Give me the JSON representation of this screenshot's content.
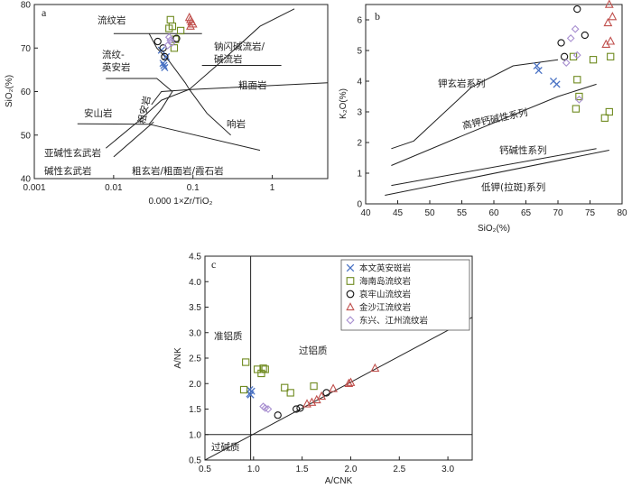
{
  "colors": {
    "benwen": "#4a72c4",
    "hainan": "#6f8a1f",
    "aolao": "#111111",
    "jinsha": "#c0504d",
    "dongxing": "#a88fd0"
  },
  "chart_data": [
    {
      "id": "a",
      "type": "scatter",
      "panel_label": "a",
      "xlabel": "0.000 1×Zr/TiO₂",
      "ylabel": "SiO₂(%)",
      "xscale": "log",
      "xlim": [
        0.001,
        5
      ],
      "ylim": [
        40,
        80
      ],
      "x_ticks": [
        0.001,
        0.01,
        0.1,
        1
      ],
      "x_tick_labels": [
        "0.001",
        "0.01",
        "0.1",
        "1"
      ],
      "y_ticks": [
        40,
        50,
        60,
        70,
        80
      ],
      "y_tick_labels": [
        "40",
        "50",
        "60",
        "70",
        "80"
      ],
      "field_lines": [
        [
          [
            0.028,
            73.3
          ],
          [
            0.035,
            70
          ],
          [
            0.05,
            67
          ],
          [
            0.08,
            62
          ],
          [
            0.09,
            60.5
          ],
          [
            0.15,
            55
          ],
          [
            0.3,
            50
          ]
        ],
        [
          [
            0.008,
            47
          ],
          [
            0.02,
            53
          ],
          [
            0.04,
            58
          ],
          [
            0.09,
            60.5
          ],
          [
            0.2,
            66
          ],
          [
            0.7,
            75
          ],
          [
            1.9,
            79
          ]
        ],
        [
          [
            0.03,
            57
          ],
          [
            0.04,
            60
          ],
          [
            0.1,
            60.5
          ],
          [
            5,
            62
          ]
        ],
        [
          [
            0.008,
            63
          ],
          [
            0.035,
            63
          ],
          [
            0.055,
            60
          ],
          [
            0.04,
            56
          ],
          [
            0.028,
            52.5
          ]
        ],
        [
          [
            0.0035,
            52.6
          ],
          [
            0.028,
            52.5
          ],
          [
            0.7,
            46.5
          ]
        ],
        [
          [
            0.01,
            45
          ],
          [
            0.032,
            53
          ]
        ],
        [
          [
            0.01,
            73.3
          ],
          [
            0.13,
            73.3
          ]
        ],
        [
          [
            0.13,
            66
          ],
          [
            1.3,
            66
          ]
        ]
      ],
      "field_names": [
        "流纹岩",
        "流纹-",
        "英安岩",
        "钠闪碱流岩/",
        "碱流岩",
        "粗面岩",
        "安山岩",
        "粗安岩",
        "响岩",
        "亚碱性玄武岩",
        "碱性玄武岩",
        "粗玄岩/粗面岩/霞石岩"
      ],
      "series": [
        {
          "name": "本文英安斑岩",
          "marker": "x",
          "x": [
            0.04,
            0.042,
            0.044,
            0.046,
            0.043
          ],
          "y": [
            69.5,
            66.5,
            65.5,
            68,
            66
          ]
        },
        {
          "name": "海南岛流纹岩",
          "marker": "square",
          "x": [
            0.052,
            0.055,
            0.05,
            0.07,
            0.06,
            0.058
          ],
          "y": [
            76.5,
            75,
            74.5,
            74,
            72,
            70
          ]
        },
        {
          "name": "哀牢山流纹岩",
          "marker": "circle",
          "x": [
            0.036,
            0.042,
            0.044,
            0.062
          ],
          "y": [
            71.5,
            70,
            68,
            72.2
          ]
        },
        {
          "name": "金沙江流纹岩",
          "marker": "triangle",
          "x": [
            0.09,
            0.093,
            0.096,
            0.1,
            0.093
          ],
          "y": [
            77,
            76.5,
            76,
            75.5,
            75
          ]
        },
        {
          "name": "东兴、江州流纹岩",
          "marker": "diamond",
          "x": [
            0.05,
            0.052,
            0.054,
            0.048
          ],
          "y": [
            72.5,
            71.8,
            71.2,
            70.6
          ]
        }
      ]
    },
    {
      "id": "b",
      "type": "scatter",
      "panel_label": "b",
      "xlabel": "SiO₂(%)",
      "ylabel": "K₂O(%)",
      "xlim": [
        40,
        80
      ],
      "ylim": [
        0,
        6.5
      ],
      "x_ticks": [
        40,
        45,
        50,
        55,
        60,
        65,
        70,
        75,
        80
      ],
      "y_ticks": [
        0,
        1,
        2,
        3,
        4,
        5,
        6
      ],
      "field_lines": [
        [
          [
            44,
            1.8
          ],
          [
            47.5,
            2.05
          ],
          [
            56.5,
            3.8
          ],
          [
            63,
            4.5
          ],
          [
            70,
            4.7
          ]
        ],
        [
          [
            44,
            1.25
          ],
          [
            56,
            2.3
          ],
          [
            70,
            3.5
          ],
          [
            76,
            3.9
          ]
        ],
        [
          [
            44,
            0.6
          ],
          [
            76,
            1.8
          ]
        ],
        [
          [
            43,
            0.28
          ],
          [
            78,
            1.75
          ]
        ]
      ],
      "field_names": [
        "钾玄岩系列",
        "高钾钙碱性系列",
        "钙碱性系列",
        "低钾(拉斑)系列"
      ],
      "series": [
        {
          "name": "本文英安斑岩",
          "marker": "x",
          "x": [
            66.7,
            67,
            69.3,
            69.8
          ],
          "y": [
            4.5,
            4.35,
            4.0,
            3.9
          ]
        },
        {
          "name": "海南岛流纹岩",
          "marker": "square",
          "x": [
            72.4,
            73,
            73.3,
            72.8,
            75.5,
            77.3,
            78,
            78.2
          ],
          "y": [
            4.8,
            4.05,
            3.5,
            3.1,
            4.7,
            2.8,
            3.0,
            4.8
          ]
        },
        {
          "name": "哀牢山流纹岩",
          "marker": "circle",
          "x": [
            70.5,
            71,
            73,
            74.2
          ],
          "y": [
            5.25,
            4.8,
            6.35,
            5.5
          ]
        },
        {
          "name": "金沙江流纹岩",
          "marker": "triangle",
          "x": [
            78,
            78.5,
            77.8,
            78.2,
            77.5
          ],
          "y": [
            6.5,
            6.1,
            5.9,
            5.3,
            5.2
          ]
        },
        {
          "name": "东兴、江州流纹岩",
          "marker": "diamond",
          "x": [
            71.3,
            72,
            72.7,
            73.3,
            73
          ],
          "y": [
            4.6,
            5.4,
            5.7,
            3.4,
            4.85
          ]
        }
      ]
    },
    {
      "id": "c",
      "type": "scatter",
      "panel_label": "c",
      "xlabel": "A/CNK",
      "ylabel": "A/NK",
      "xlim": [
        0.5,
        3.25
      ],
      "ylim": [
        0.5,
        4.5
      ],
      "x_ticks": [
        0.5,
        1.0,
        1.5,
        2.0,
        2.5,
        3.0
      ],
      "x_tick_labels": [
        "0.5",
        "1.0",
        "1.5",
        "2.0",
        "2.5",
        "3.0"
      ],
      "y_ticks": [
        0.5,
        1.0,
        1.5,
        2.0,
        2.5,
        3.0,
        3.5,
        4.0,
        4.5
      ],
      "y_tick_labels": [
        "0.5",
        "1.0",
        "1.5",
        "2.0",
        "2.5",
        "3.0",
        "3.5",
        "4.0",
        "4.5"
      ],
      "field_lines": [
        [
          [
            0.97,
            0.5
          ],
          [
            0.97,
            4.5
          ]
        ],
        [
          [
            0.5,
            1.0
          ],
          [
            3.25,
            1.0
          ]
        ],
        [
          [
            0.5,
            0.5
          ],
          [
            3.25,
            3.3
          ]
        ]
      ],
      "field_names": [
        "准铝质",
        "过铝质",
        "过碱质"
      ],
      "series": [
        {
          "name": "本文英安斑岩",
          "marker": "x",
          "x": [
            0.96,
            0.98,
            0.97,
            0.96
          ],
          "y": [
            1.8,
            1.85,
            1.78,
            1.88
          ]
        },
        {
          "name": "海南岛流纹岩",
          "marker": "square",
          "x": [
            0.92,
            0.9,
            1.04,
            1.08,
            1.1,
            1.12,
            1.32,
            1.38,
            1.62
          ],
          "y": [
            2.42,
            1.88,
            2.28,
            2.2,
            2.3,
            2.28,
            1.92,
            1.82,
            1.95
          ]
        },
        {
          "name": "哀牢山流纹岩",
          "marker": "circle",
          "x": [
            1.25,
            1.44,
            1.48,
            1.75
          ],
          "y": [
            1.38,
            1.5,
            1.52,
            1.82
          ]
        },
        {
          "name": "金沙江流纹岩",
          "marker": "triangle",
          "x": [
            1.55,
            1.6,
            1.65,
            1.7,
            1.82,
            1.98,
            2.0,
            2.25
          ],
          "y": [
            1.6,
            1.63,
            1.68,
            1.75,
            1.9,
            2.0,
            2.02,
            2.3
          ]
        },
        {
          "name": "东兴、江州流纹岩",
          "marker": "diamond",
          "x": [
            1.1,
            1.12,
            1.15
          ],
          "y": [
            1.55,
            1.52,
            1.5
          ]
        }
      ]
    }
  ]
}
